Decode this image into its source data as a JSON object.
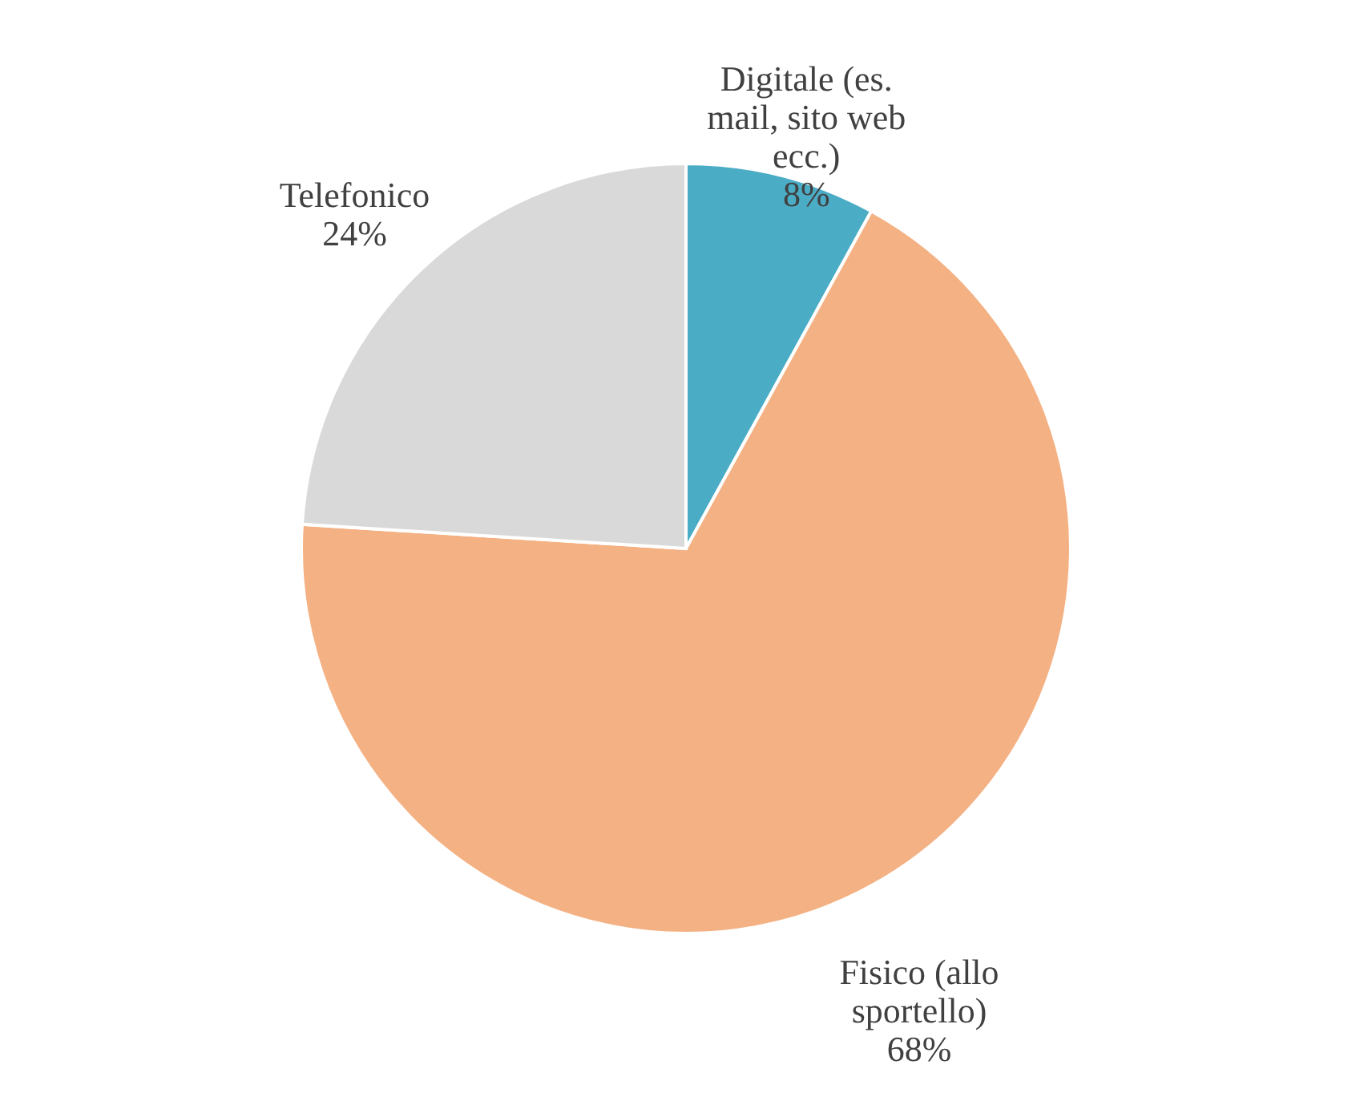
{
  "chart_data": {
    "type": "pie",
    "categories": [
      "Digitale (es. mail, sito web ecc.)",
      "Fisico (allo sportello)",
      "Telefonico"
    ],
    "values": [
      8,
      68,
      24
    ],
    "colors": [
      "#4bacc6",
      "#f4b183",
      "#d9d9d9"
    ],
    "value_labels": [
      "8%",
      "68%",
      "24%"
    ]
  }
}
